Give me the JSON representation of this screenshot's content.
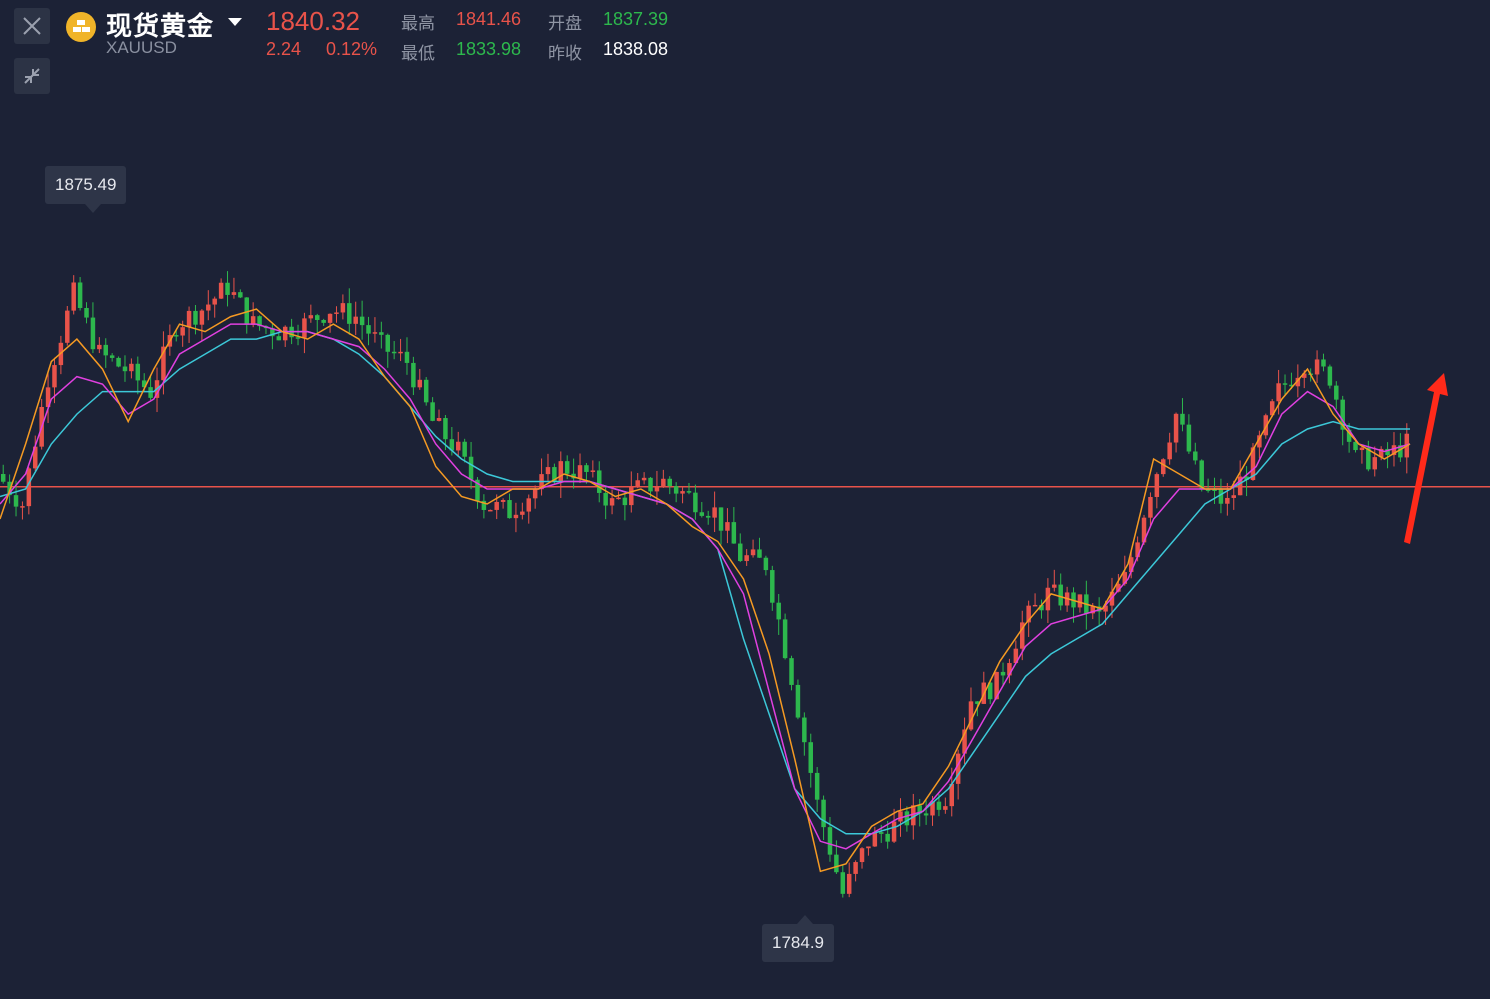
{
  "header": {
    "instrument_name": "现货黄金",
    "symbol": "XAUUSD",
    "price": "1840.32",
    "change": "2.24",
    "change_pct": "0.12%",
    "stats": {
      "high_label": "最高",
      "high": "1841.46",
      "open_label": "开盘",
      "open": "1837.39",
      "low_label": "最低",
      "low": "1833.98",
      "prev_close_label": "昨收",
      "prev_close": "1838.08"
    },
    "icons": [
      "close-icon",
      "collapse-icon",
      "gold-coin-icon",
      "chevron-down-icon"
    ]
  },
  "colors": {
    "background": "#1c2236",
    "up": "#e8534a",
    "down": "#2db84d",
    "ma_fast": "#f59a23",
    "ma_mid": "#e040e0",
    "ma_slow": "#3cc8d8",
    "reference_line": "#e8534a",
    "arrow": "#ff2a1a"
  },
  "chart_data": {
    "type": "candlestick",
    "title": "",
    "xlabel": "",
    "ylabel": "",
    "ylim": [
      1780,
      1880
    ],
    "grid": false,
    "max_label": "1875.49",
    "min_label": "1784.9",
    "reference_level": 1840.3,
    "annotation": "red upward arrow at right edge",
    "series": [
      {
        "name": "",
        "kind": "close",
        "values": [
          1842,
          1838,
          1855,
          1866,
          1858,
          1856,
          1853,
          1862,
          1864,
          1867,
          1862,
          1861,
          1862,
          1864,
          1863,
          1859,
          1857,
          1849,
          1845,
          1838,
          1837,
          1840,
          1843,
          1842,
          1838,
          1840,
          1841,
          1839,
          1837,
          1831,
          1830,
          1815,
          1798,
          1786,
          1793,
          1795,
          1797,
          1799,
          1812,
          1814,
          1822,
          1826,
          1825,
          1823,
          1828,
          1840,
          1850,
          1840,
          1838,
          1844,
          1853,
          1857,
          1855,
          1844,
          1844,
          1846
        ]
      },
      {
        "name": "",
        "kind": "ma_fast",
        "values": [
          1836,
          1846,
          1857,
          1860,
          1856,
          1849,
          1856,
          1862,
          1861,
          1863,
          1864,
          1861,
          1860,
          1862,
          1860,
          1855,
          1851,
          1843,
          1839,
          1838,
          1840,
          1840,
          1842,
          1841,
          1839,
          1840,
          1838,
          1835,
          1833,
          1828,
          1818,
          1804,
          1789,
          1790,
          1795,
          1797,
          1798,
          1803,
          1810,
          1817,
          1822,
          1826,
          1825,
          1824,
          1830,
          1844,
          1842,
          1840,
          1840,
          1846,
          1852,
          1856,
          1850,
          1846,
          1844,
          1846
        ]
      },
      {
        "name": "",
        "kind": "ma_mid",
        "values": [
          1838,
          1842,
          1852,
          1855,
          1854,
          1850,
          1852,
          1858,
          1860,
          1862,
          1862,
          1861,
          1861,
          1860,
          1859,
          1856,
          1852,
          1846,
          1842,
          1840,
          1840,
          1840,
          1841,
          1841,
          1840,
          1839,
          1838,
          1836,
          1832,
          1826,
          1813,
          1800,
          1793,
          1792,
          1794,
          1796,
          1797,
          1801,
          1807,
          1813,
          1819,
          1822,
          1823,
          1824,
          1828,
          1836,
          1840,
          1840,
          1840,
          1843,
          1850,
          1853,
          1851,
          1846,
          1845,
          1846
        ]
      },
      {
        "name": "",
        "kind": "ma_slow",
        "values": [
          1839,
          1840,
          1846,
          1850,
          1853,
          1853,
          1853,
          1856,
          1858,
          1860,
          1860,
          1861,
          1861,
          1860,
          1858,
          1855,
          1851,
          1847,
          1844,
          1842,
          1841,
          1841,
          1841,
          1841,
          1840,
          1839,
          1838,
          1836,
          1832,
          1820,
          1810,
          1800,
          1796,
          1794,
          1794,
          1795,
          1797,
          1800,
          1805,
          1810,
          1815,
          1818,
          1820,
          1822,
          1826,
          1830,
          1834,
          1838,
          1840,
          1842,
          1846,
          1848,
          1849,
          1848,
          1848,
          1848
        ]
      }
    ]
  }
}
